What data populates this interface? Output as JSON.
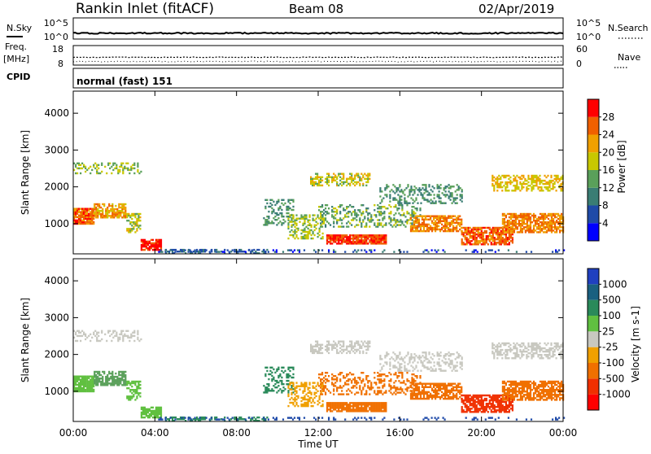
{
  "header": {
    "station": "Rankin Inlet (fitACF)",
    "beam": "Beam 08",
    "date": "02/Apr/2019"
  },
  "top_panels": {
    "nsky_label": "N.Sky",
    "nsky_ticks": [
      "10^5",
      "10^0"
    ],
    "nsearch_label": "N.Search",
    "nsearch_ticks": [
      "10^5",
      "10^0"
    ],
    "freq_label": "Freq.",
    "freq_unit": "[MHz]",
    "freq_ticks": [
      "18",
      "8"
    ],
    "nave_label": "Nave",
    "nave_ticks": [
      "60",
      "0"
    ],
    "cpid_label": "CPID",
    "cpid_value": "normal (fast) 151"
  },
  "chart_data": [
    {
      "type": "heatmap",
      "name": "power",
      "ylabel": "Slant Range [km]",
      "ylim": [
        180,
        4600
      ],
      "yticks": [
        "4000",
        "3000",
        "2000",
        "1000"
      ],
      "ytick_values": [
        4000,
        3000,
        2000,
        1000
      ],
      "xlim": [
        0,
        24
      ],
      "colorbar_label": "Power [dB]",
      "colorbar_ticks": [
        "28",
        "24",
        "20",
        "16",
        "12",
        "8",
        "4"
      ],
      "colorbar_tick_values": [
        28,
        24,
        20,
        16,
        12,
        8,
        4
      ],
      "colorbar_range": [
        0,
        32
      ],
      "colorbar_colors": [
        "#0000ff",
        "#1f4aa8",
        "#3a7d74",
        "#5aa05a",
        "#c8c800",
        "#f0a000",
        "#f06000",
        "#ff0000"
      ]
    },
    {
      "type": "heatmap",
      "name": "velocity",
      "ylabel": "Slant Range [km]",
      "ylim": [
        180,
        4600
      ],
      "yticks": [
        "4000",
        "3000",
        "2000",
        "1000"
      ],
      "ytick_values": [
        4000,
        3000,
        2000,
        1000
      ],
      "xlim": [
        0,
        24
      ],
      "xlabel": "Time UT",
      "xticks": [
        "00:00",
        "04:00",
        "08:00",
        "12:00",
        "16:00",
        "20:00",
        "00:00"
      ],
      "xtick_values": [
        0,
        4,
        8,
        12,
        16,
        20,
        24
      ],
      "colorbar_label": "Velocity [m s-1]",
      "colorbar_ticks": [
        "1000",
        "500",
        "100",
        "25",
        "-25",
        "-100",
        "-500",
        "-1000"
      ],
      "colorbar_colors": [
        "#2040c0",
        "#1a6080",
        "#2a8a5a",
        "#60c040",
        "#c8c8c0",
        "#f0a000",
        "#f07000",
        "#f03000",
        "#ff0000"
      ]
    }
  ]
}
